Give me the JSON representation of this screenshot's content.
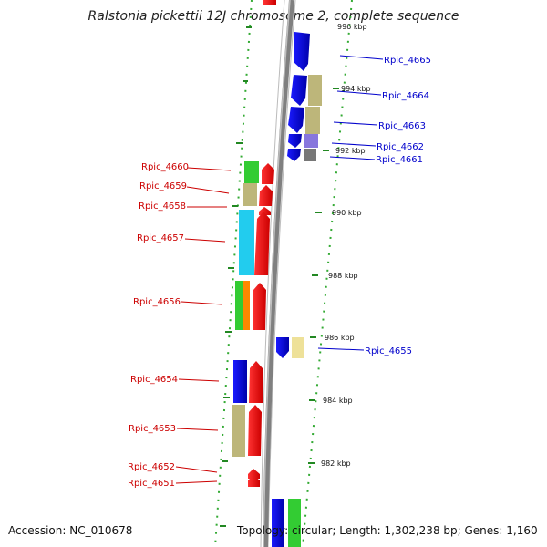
{
  "header": {
    "title": "Ralstonia pickettii 12J chromosome 2, complete sequence"
  },
  "footer": {
    "accession": "Accession: NC_010678",
    "summary": "Topology: circular; Length: 1,302,238 bp; Genes: 1,160"
  },
  "scale": {
    "labels": [
      "994 kbp",
      "992 kbp",
      "990 kbp",
      "988 kbp",
      "986 kbp",
      "984 kbp",
      "982 kbp"
    ]
  },
  "genes": {
    "forward": [
      "Rpic_4665",
      "Rpic_4664",
      "Rpic_4663",
      "Rpic_4662",
      "Rpic_4661",
      "Rpic_4655"
    ],
    "reverse": [
      "Rpic_4660",
      "Rpic_4659",
      "Rpic_4658",
      "Rpic_4657",
      "Rpic_4656",
      "Rpic_4654",
      "Rpic_4653",
      "Rpic_4652",
      "Rpic_4651"
    ]
  },
  "colors": {
    "forward_label": "#0000cc",
    "reverse_label": "#cc0000",
    "backbone": "#808080",
    "cog_green": "#33cc33",
    "cog_tan": "#bdb67a",
    "cog_cyan": "#22ccee",
    "cog_orange": "#ff8800",
    "cog_lavender": "#8877dd",
    "cog_gray": "#777777",
    "cog_paleyellow": "#eee199"
  }
}
